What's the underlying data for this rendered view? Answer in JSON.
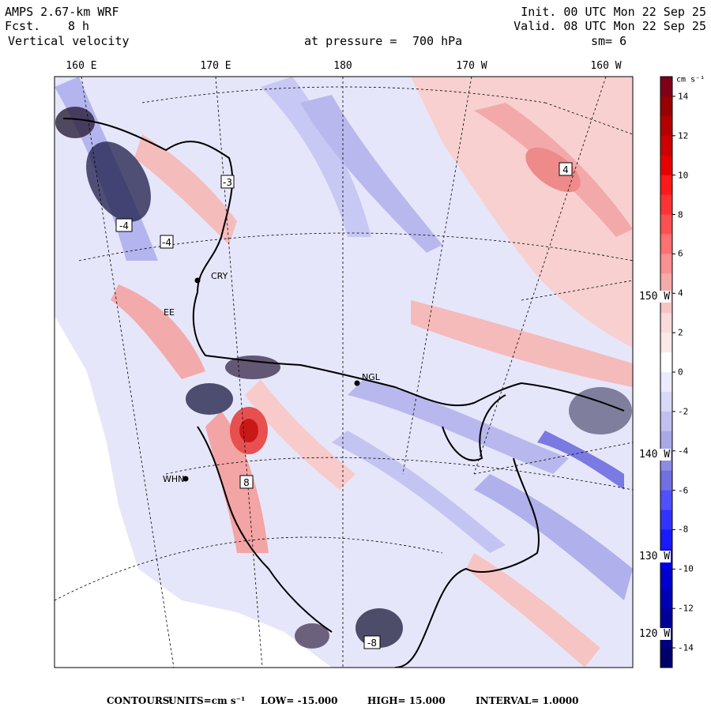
{
  "header": {
    "model": "AMPS 2.67-km WRF",
    "fcst_label": "Fcst.",
    "fcst_value": "8 h",
    "field": "Vertical velocity",
    "init": "Init. 00 UTC Mon 22 Sep 25",
    "valid": "Valid. 08 UTC Mon 22 Sep 25",
    "level_label": "at pressure =",
    "level_value": "700 hPa",
    "smoothing": "sm= 6"
  },
  "longitude_labels": [
    "160 E",
    "170 E",
    "180",
    "170 W",
    "160 W"
  ],
  "latitude_labels": [
    "150 W",
    "140 W",
    "130 W",
    "120 W"
  ],
  "colorbar": {
    "units": "cm s⁻¹",
    "ticks": [
      "14",
      "12",
      "10",
      "8",
      "6",
      "4",
      "2",
      "0",
      "-2",
      "-4",
      "-6",
      "-8",
      "-10",
      "-12",
      "-14"
    ],
    "colors": [
      "#80001a",
      "#990000",
      "#b30000",
      "#cc0000",
      "#e60000",
      "#ff1a1a",
      "#ff3333",
      "#ff5050",
      "#ff7070",
      "#fa9090",
      "#f5aaaa",
      "#f7c4c4",
      "#fadada",
      "#fde8e8",
      "#ffffff",
      "#ebebff",
      "#d8d8f8",
      "#c0c0f0",
      "#a8a8e8",
      "#8c8ce6",
      "#7070e0",
      "#5050ff",
      "#3333ff",
      "#1a1aff",
      "#0000e6",
      "#0000cc",
      "#0000b3",
      "#000099",
      "#000080",
      "#00006a"
    ]
  },
  "stations": [
    {
      "code": "CRY"
    },
    {
      "code": "NGL"
    },
    {
      "code": "WHN"
    },
    {
      "code": "EE"
    }
  ],
  "extremum_markers": [
    "4",
    "-4",
    "-4",
    "-3",
    "8",
    "-8"
  ],
  "footer": {
    "contours_label": "CONTOURS:",
    "units": "UNITS=cm s⁻¹",
    "low": "LOW= -15.000",
    "high": "HIGH= 15.000",
    "interval": "INTERVAL= 1.0000"
  }
}
